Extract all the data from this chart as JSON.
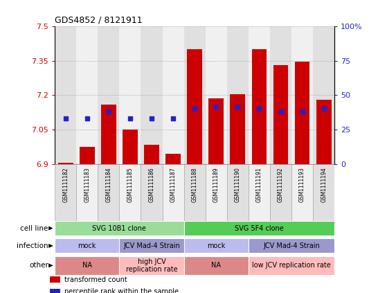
{
  "title": "GDS4852 / 8121911",
  "samples": [
    "GSM1111182",
    "GSM1111183",
    "GSM1111184",
    "GSM1111185",
    "GSM1111186",
    "GSM1111187",
    "GSM1111188",
    "GSM1111189",
    "GSM1111190",
    "GSM1111191",
    "GSM1111192",
    "GSM1111193",
    "GSM1111194"
  ],
  "bar_values": [
    6.905,
    6.975,
    7.16,
    7.05,
    6.985,
    6.945,
    7.4,
    7.185,
    7.205,
    7.4,
    7.33,
    7.345,
    7.18
  ],
  "percentile_values": [
    7.1,
    7.1,
    7.13,
    7.1,
    7.1,
    7.1,
    7.14,
    7.15,
    7.15,
    7.14,
    7.13,
    7.13,
    7.14
  ],
  "bar_color": "#cc0000",
  "percentile_color": "#2222cc",
  "y_min": 6.9,
  "y_max": 7.5,
  "y_ticks": [
    6.9,
    7.05,
    7.2,
    7.35,
    7.5
  ],
  "y2_ticks_labels": [
    "0",
    "25",
    "50",
    "75",
    "100%"
  ],
  "y2_tick_positions": [
    6.9,
    7.05,
    7.2,
    7.35,
    7.5
  ],
  "grid_color": "#888888",
  "bg_color": "#ffffff",
  "col_bg_even": "#e0e0e0",
  "col_bg_odd": "#f0f0f0",
  "cell_line_row": {
    "label": "cell line",
    "groups": [
      {
        "text": "SVG 10B1 clone",
        "start": 0,
        "end": 6,
        "color": "#99dd99"
      },
      {
        "text": "SVG 5F4 clone",
        "start": 6,
        "end": 13,
        "color": "#55cc55"
      }
    ]
  },
  "infection_row": {
    "label": "infection",
    "groups": [
      {
        "text": "mock",
        "start": 0,
        "end": 3,
        "color": "#bbbbee"
      },
      {
        "text": "JCV Mad-4 Strain",
        "start": 3,
        "end": 6,
        "color": "#9999cc"
      },
      {
        "text": "mock",
        "start": 6,
        "end": 9,
        "color": "#bbbbee"
      },
      {
        "text": "JCV Mad-4 Strain",
        "start": 9,
        "end": 13,
        "color": "#9999cc"
      }
    ]
  },
  "other_row": {
    "label": "other",
    "groups": [
      {
        "text": "NA",
        "start": 0,
        "end": 3,
        "color": "#dd8888"
      },
      {
        "text": "high JCV\nreplication rate",
        "start": 3,
        "end": 6,
        "color": "#ffbbbb"
      },
      {
        "text": "NA",
        "start": 6,
        "end": 9,
        "color": "#dd8888"
      },
      {
        "text": "low JCV replication rate",
        "start": 9,
        "end": 13,
        "color": "#ffbbbb"
      }
    ]
  },
  "legend_items": [
    {
      "label": "transformed count",
      "color": "#cc0000"
    },
    {
      "label": "percentile rank within the sample",
      "color": "#2222cc"
    }
  ]
}
